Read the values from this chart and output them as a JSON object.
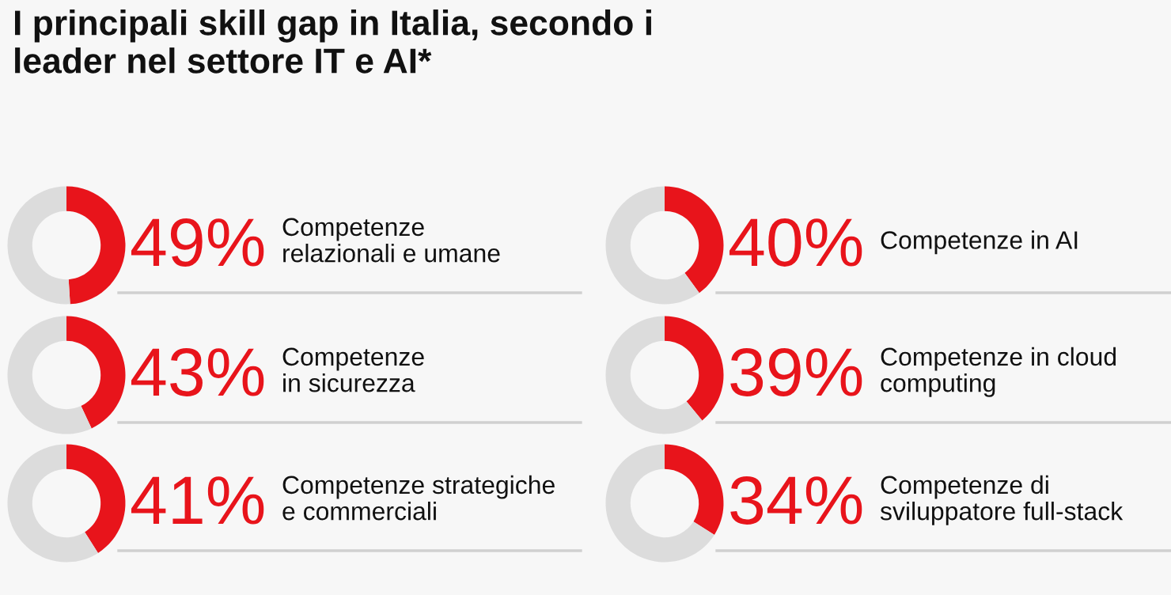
{
  "chart_data": [
    {
      "type": "donut",
      "title": "I principali skill gap in Italia, secondo i\nleader nel settore IT e AI*",
      "categories": [
        "Competenze\nrelazionali e umane",
        null
      ],
      "values": [
        49,
        51
      ],
      "colors": [
        "#e8141b",
        "#dcdcdc"
      ],
      "value_labels": [
        "49%",
        null
      ]
    },
    {
      "type": "donut",
      "categories": [
        "Competenze in AI",
        null
      ],
      "values": [
        40,
        60
      ],
      "colors": [
        "#e8141b",
        "#dcdcdc"
      ],
      "value_labels": [
        "40%",
        null
      ]
    },
    {
      "type": "donut",
      "categories": [
        "Competenze\nin sicurezza",
        null
      ],
      "values": [
        43,
        57
      ],
      "colors": [
        "#e8141b",
        "#dcdcdc"
      ],
      "value_labels": [
        "43%",
        null
      ]
    },
    {
      "type": "donut",
      "categories": [
        "Competenze in cloud\ncomputing",
        null
      ],
      "values": [
        39,
        61
      ],
      "colors": [
        "#e8141b",
        "#dcdcdc"
      ],
      "value_labels": [
        "39%",
        null
      ]
    },
    {
      "type": "donut",
      "categories": [
        "Competenze strategiche\ne commerciali",
        null
      ],
      "values": [
        41,
        59
      ],
      "colors": [
        "#e8141b",
        "#dcdcdc"
      ],
      "value_labels": [
        "41%",
        null
      ]
    },
    {
      "type": "donut",
      "categories": [
        "Competenze di\nsviluppatore full-stack",
        null
      ],
      "values": [
        34,
        66
      ],
      "colors": [
        "#e8141b",
        "#dcdcdc"
      ],
      "value_labels": [
        "34%",
        null
      ]
    }
  ]
}
